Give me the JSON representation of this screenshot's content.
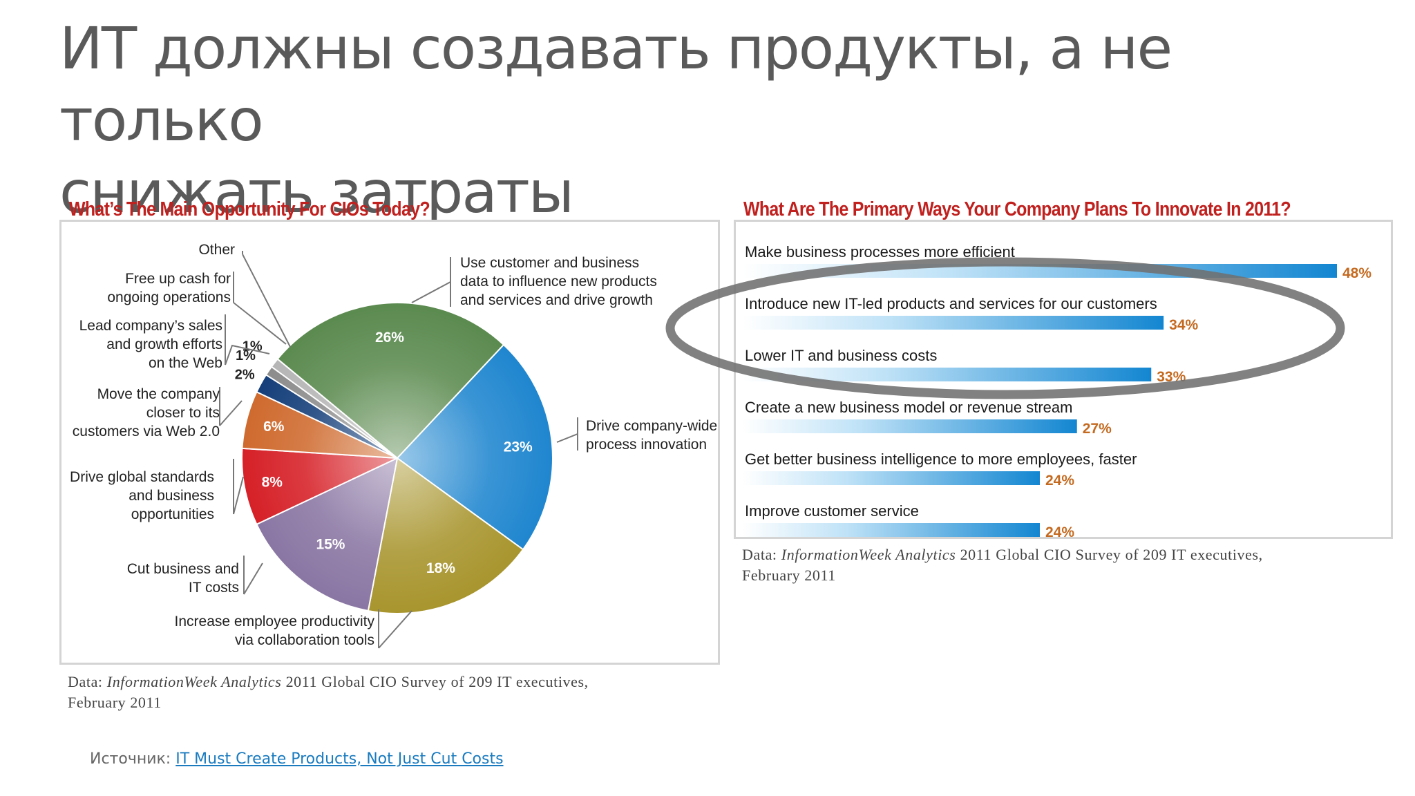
{
  "slide": {
    "title_line1": "ИТ должны создавать продукты, а не только",
    "title_line2": "снижать затраты",
    "source_label": "Источник:",
    "source_link": "IT Must Create Products, Not Just Cut Costs"
  },
  "left_chart": {
    "heading": "What’s The Main Opportunity For CIOs Today?",
    "caption_prefix": "Data:",
    "caption_italic": "InformationWeek Analytics",
    "caption_rest": "2011 Global CIO Survey of 209 IT executives,",
    "caption_line2": "February 2011"
  },
  "right_chart": {
    "heading": "What Are The Primary Ways Your Company Plans To Innovate In 2011?",
    "caption_prefix": "Data:",
    "caption_italic": "InformationWeek Analytics",
    "caption_rest": "2011 Global CIO Survey of 209 IT executives,",
    "caption_line2": "February 2011"
  },
  "chart_data": [
    {
      "type": "pie",
      "title": "What’s The Main Opportunity For CIOs Today?",
      "slices": [
        {
          "label": "Use customer and business data to influence new products and services and drive growth",
          "value": 26,
          "value_label": "26%",
          "color": "#5b8a4f"
        },
        {
          "label": "Drive company-wide process innovation",
          "value": 23,
          "value_label": "23%",
          "color": "#1f86cf"
        },
        {
          "label": "Increase employee productivity via collaboration tools",
          "value": 18,
          "value_label": "18%",
          "color": "#a8952e"
        },
        {
          "label": "Cut business and IT costs",
          "value": 15,
          "value_label": "15%",
          "color": "#8a76a3"
        },
        {
          "label": "Drive global standards and business opportunities",
          "value": 8,
          "value_label": "8%",
          "color": "#d62027"
        },
        {
          "label": "Move the company closer to its customers via Web 2.0",
          "value": 6,
          "value_label": "6%",
          "color": "#cf6a2e"
        },
        {
          "label": "Lead company’s sales and growth efforts on the Web",
          "value": 2,
          "value_label": "2%",
          "color": "#153f7a"
        },
        {
          "label": "Free up cash for ongoing operations",
          "value": 1,
          "value_label": "1%",
          "color": "#8c8c8c"
        },
        {
          "label": "Other",
          "value": 1,
          "value_label": "1%",
          "color": "#b5b5b5"
        }
      ]
    },
    {
      "type": "bar",
      "orientation": "horizontal",
      "title": "What Are The Primary Ways Your Company Plans To Innovate In 2011?",
      "categories": [
        "Make business processes more efficient",
        "Introduce new IT-led products and services for our customers",
        "Lower IT and business costs",
        "Create a new business model or revenue stream",
        "Get better business intelligence to more employees, faster",
        "Improve customer service"
      ],
      "values": [
        48,
        34,
        33,
        27,
        24,
        24
      ],
      "value_labels": [
        "48%",
        "34%",
        "33%",
        "27%",
        "24%",
        "24%"
      ],
      "highlight": "Introduce new IT-led products and services for our customers",
      "bar_color": "#1a8ad0"
    }
  ]
}
